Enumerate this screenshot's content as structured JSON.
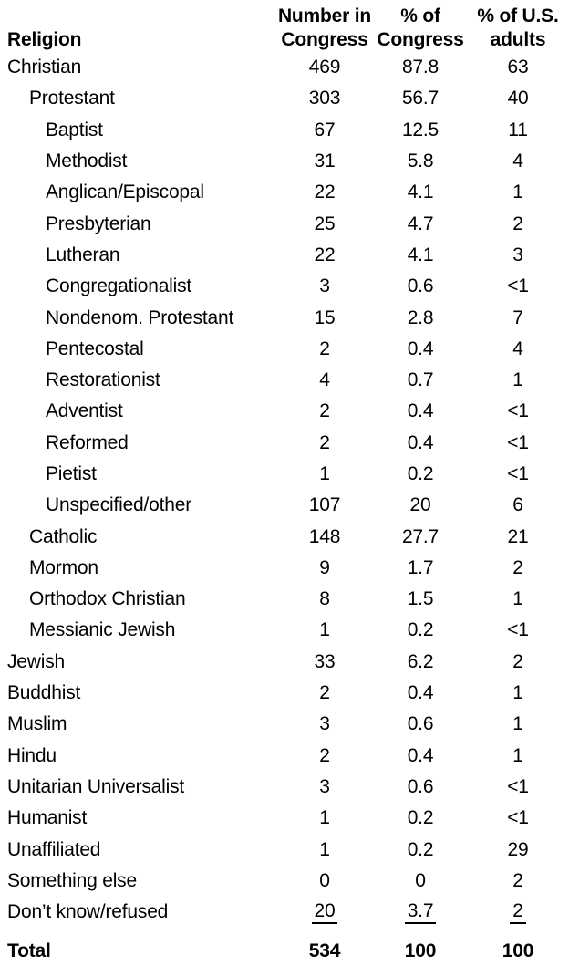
{
  "colors": {
    "background": "#ffffff",
    "text": "#000000"
  },
  "chart_data": {
    "type": "table",
    "header": {
      "religion_label": "Religion",
      "columns": [
        {
          "line1": "Number in",
          "line2": "Congress"
        },
        {
          "line1": "% of",
          "line2": "Congress"
        },
        {
          "line1": "% of U.S.",
          "line2": "adults"
        }
      ]
    },
    "rows": [
      {
        "label": "Christian",
        "indent": 0,
        "number_in_congress": "469",
        "pct_of_congress": "87.8",
        "pct_of_us_adults": "63",
        "underline": false
      },
      {
        "label": "Protestant",
        "indent": 1,
        "number_in_congress": "303",
        "pct_of_congress": "56.7",
        "pct_of_us_adults": "40",
        "underline": false
      },
      {
        "label": "Baptist",
        "indent": 2,
        "number_in_congress": "67",
        "pct_of_congress": "12.5",
        "pct_of_us_adults": "11",
        "underline": false
      },
      {
        "label": "Methodist",
        "indent": 2,
        "number_in_congress": "31",
        "pct_of_congress": "5.8",
        "pct_of_us_adults": "4",
        "underline": false
      },
      {
        "label": "Anglican/Episcopal",
        "indent": 2,
        "number_in_congress": "22",
        "pct_of_congress": "4.1",
        "pct_of_us_adults": "1",
        "underline": false
      },
      {
        "label": "Presbyterian",
        "indent": 2,
        "number_in_congress": "25",
        "pct_of_congress": "4.7",
        "pct_of_us_adults": "2",
        "underline": false
      },
      {
        "label": "Lutheran",
        "indent": 2,
        "number_in_congress": "22",
        "pct_of_congress": "4.1",
        "pct_of_us_adults": "3",
        "underline": false
      },
      {
        "label": "Congregationalist",
        "indent": 2,
        "number_in_congress": "3",
        "pct_of_congress": "0.6",
        "pct_of_us_adults": "<1",
        "underline": false
      },
      {
        "label": "Nondenom. Protestant",
        "indent": 2,
        "number_in_congress": "15",
        "pct_of_congress": "2.8",
        "pct_of_us_adults": "7",
        "underline": false
      },
      {
        "label": "Pentecostal",
        "indent": 2,
        "number_in_congress": "2",
        "pct_of_congress": "0.4",
        "pct_of_us_adults": "4",
        "underline": false
      },
      {
        "label": "Restorationist",
        "indent": 2,
        "number_in_congress": "4",
        "pct_of_congress": "0.7",
        "pct_of_us_adults": "1",
        "underline": false
      },
      {
        "label": "Adventist",
        "indent": 2,
        "number_in_congress": "2",
        "pct_of_congress": "0.4",
        "pct_of_us_adults": "<1",
        "underline": false
      },
      {
        "label": "Reformed",
        "indent": 2,
        "number_in_congress": "2",
        "pct_of_congress": "0.4",
        "pct_of_us_adults": "<1",
        "underline": false
      },
      {
        "label": "Pietist",
        "indent": 2,
        "number_in_congress": "1",
        "pct_of_congress": "0.2",
        "pct_of_us_adults": "<1",
        "underline": false
      },
      {
        "label": "Unspecified/other",
        "indent": 2,
        "number_in_congress": "107",
        "pct_of_congress": "20",
        "pct_of_us_adults": "6",
        "underline": false
      },
      {
        "label": "Catholic",
        "indent": 1,
        "number_in_congress": "148",
        "pct_of_congress": "27.7",
        "pct_of_us_adults": "21",
        "underline": false
      },
      {
        "label": "Mormon",
        "indent": 1,
        "number_in_congress": "9",
        "pct_of_congress": "1.7",
        "pct_of_us_adults": "2",
        "underline": false
      },
      {
        "label": "Orthodox Christian",
        "indent": 1,
        "number_in_congress": "8",
        "pct_of_congress": "1.5",
        "pct_of_us_adults": "1",
        "underline": false
      },
      {
        "label": "Messianic Jewish",
        "indent": 1,
        "number_in_congress": "1",
        "pct_of_congress": "0.2",
        "pct_of_us_adults": "<1",
        "underline": false
      },
      {
        "label": "Jewish",
        "indent": 0,
        "number_in_congress": "33",
        "pct_of_congress": "6.2",
        "pct_of_us_adults": "2",
        "underline": false
      },
      {
        "label": "Buddhist",
        "indent": 0,
        "number_in_congress": "2",
        "pct_of_congress": "0.4",
        "pct_of_us_adults": "1",
        "underline": false
      },
      {
        "label": "Muslim",
        "indent": 0,
        "number_in_congress": "3",
        "pct_of_congress": "0.6",
        "pct_of_us_adults": "1",
        "underline": false
      },
      {
        "label": "Hindu",
        "indent": 0,
        "number_in_congress": "2",
        "pct_of_congress": "0.4",
        "pct_of_us_adults": "1",
        "underline": false
      },
      {
        "label": "Unitarian Universalist",
        "indent": 0,
        "number_in_congress": "3",
        "pct_of_congress": "0.6",
        "pct_of_us_adults": "<1",
        "underline": false
      },
      {
        "label": "Humanist",
        "indent": 0,
        "number_in_congress": "1",
        "pct_of_congress": "0.2",
        "pct_of_us_adults": "<1",
        "underline": false
      },
      {
        "label": "Unaffiliated",
        "indent": 0,
        "number_in_congress": "1",
        "pct_of_congress": "0.2",
        "pct_of_us_adults": "29",
        "underline": false
      },
      {
        "label": "Something else",
        "indent": 0,
        "number_in_congress": "0",
        "pct_of_congress": "0",
        "pct_of_us_adults": "2",
        "underline": false
      },
      {
        "label": "Don’t know/refused",
        "indent": 0,
        "number_in_congress": "20",
        "pct_of_congress": "3.7",
        "pct_of_us_adults": "2",
        "underline": true
      }
    ],
    "total_row": {
      "label": "Total",
      "number_in_congress": "534",
      "pct_of_congress": "100",
      "pct_of_us_adults": "100"
    }
  }
}
